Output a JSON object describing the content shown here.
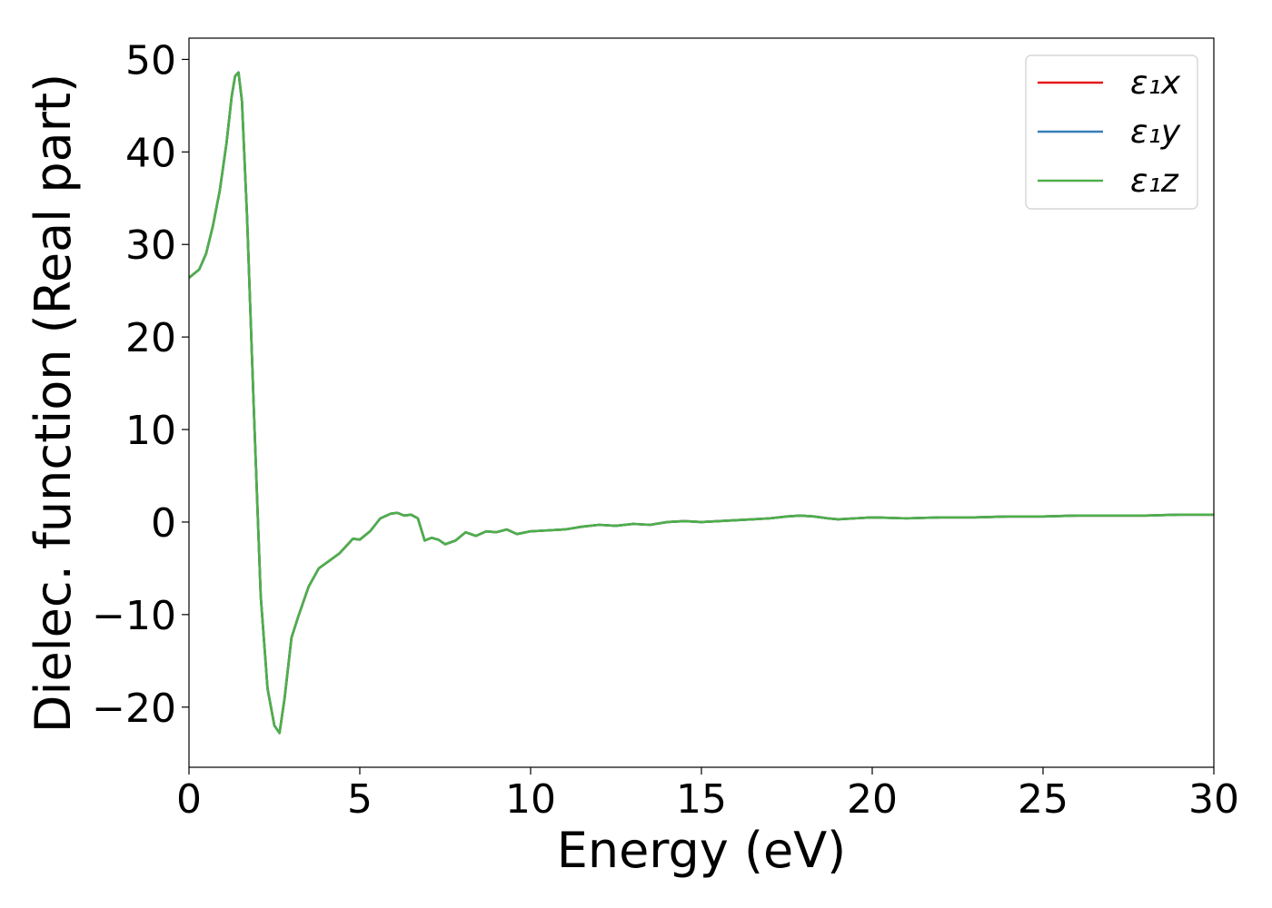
{
  "chart_data": {
    "type": "line",
    "title": "",
    "xlabel": "Energy (eV)",
    "ylabel": "Dielec. function (Real part)",
    "xlim": [
      0,
      30
    ],
    "ylim": [
      -26.5,
      52.3
    ],
    "x_ticks": [
      0,
      5,
      10,
      15,
      20,
      25,
      30
    ],
    "x_tick_labels": [
      "0",
      "5",
      "10",
      "15",
      "20",
      "25",
      "30"
    ],
    "y_ticks": [
      -20,
      -10,
      0,
      10,
      20,
      30,
      40,
      50
    ],
    "y_tick_labels": [
      "−20",
      "−10",
      "0",
      "10",
      "20",
      "30",
      "40",
      "50"
    ],
    "grid": false,
    "legend_position": "top-right",
    "x": [
      0,
      0.3,
      0.5,
      0.7,
      0.9,
      1.1,
      1.25,
      1.35,
      1.45,
      1.55,
      1.7,
      1.9,
      2.1,
      2.3,
      2.5,
      2.65,
      2.8,
      3.0,
      3.2,
      3.5,
      3.8,
      4.1,
      4.4,
      4.6,
      4.8,
      5.0,
      5.3,
      5.6,
      5.9,
      6.1,
      6.3,
      6.5,
      6.7,
      6.9,
      7.1,
      7.3,
      7.5,
      7.8,
      8.1,
      8.4,
      8.7,
      9.0,
      9.3,
      9.6,
      10.0,
      10.5,
      11.0,
      11.5,
      12.0,
      12.5,
      13.0,
      13.5,
      14.0,
      14.5,
      15.0,
      15.5,
      16.0,
      16.5,
      17.0,
      17.5,
      17.9,
      18.3,
      18.7,
      19.0,
      19.5,
      20.0,
      21.0,
      22.0,
      23.0,
      24.0,
      25.0,
      26.0,
      27.0,
      28.0,
      29.0,
      30.0
    ],
    "series": [
      {
        "name": "ε₁x",
        "color": "#e41a1c",
        "values": [
          26.4,
          27.3,
          29.0,
          32.0,
          35.8,
          41.0,
          46.0,
          48.2,
          48.6,
          45.5,
          33.0,
          12.0,
          -8.0,
          -18.0,
          -22.0,
          -22.8,
          -19.0,
          -12.5,
          -10.2,
          -7.0,
          -5.0,
          -4.2,
          -3.4,
          -2.6,
          -1.8,
          -1.9,
          -1.0,
          0.4,
          0.9,
          1.0,
          0.7,
          0.8,
          0.4,
          -2.0,
          -1.7,
          -1.9,
          -2.4,
          -2.0,
          -1.1,
          -1.5,
          -1.0,
          -1.1,
          -0.8,
          -1.3,
          -1.0,
          -0.9,
          -0.8,
          -0.5,
          -0.3,
          -0.4,
          -0.2,
          -0.3,
          0.0,
          0.1,
          0.0,
          0.1,
          0.2,
          0.3,
          0.4,
          0.6,
          0.7,
          0.6,
          0.4,
          0.3,
          0.4,
          0.5,
          0.4,
          0.5,
          0.5,
          0.6,
          0.6,
          0.7,
          0.7,
          0.7,
          0.8,
          0.8
        ]
      },
      {
        "name": "ε₁y",
        "color": "#377eb8",
        "values": [
          26.4,
          27.3,
          29.0,
          32.0,
          35.8,
          41.0,
          46.0,
          48.2,
          48.6,
          45.5,
          33.0,
          12.0,
          -8.0,
          -18.0,
          -22.0,
          -22.8,
          -19.0,
          -12.5,
          -10.2,
          -7.0,
          -5.0,
          -4.2,
          -3.4,
          -2.6,
          -1.8,
          -1.9,
          -1.0,
          0.4,
          0.9,
          1.0,
          0.7,
          0.8,
          0.4,
          -2.0,
          -1.7,
          -1.9,
          -2.4,
          -2.0,
          -1.1,
          -1.5,
          -1.0,
          -1.1,
          -0.8,
          -1.3,
          -1.0,
          -0.9,
          -0.8,
          -0.5,
          -0.3,
          -0.4,
          -0.2,
          -0.3,
          0.0,
          0.1,
          0.0,
          0.1,
          0.2,
          0.3,
          0.4,
          0.6,
          0.7,
          0.6,
          0.4,
          0.3,
          0.4,
          0.5,
          0.4,
          0.5,
          0.5,
          0.6,
          0.6,
          0.7,
          0.7,
          0.7,
          0.8,
          0.8
        ]
      },
      {
        "name": "ε₁z",
        "color": "#4daf4a",
        "values": [
          26.4,
          27.3,
          29.0,
          32.0,
          35.8,
          41.0,
          46.0,
          48.2,
          48.6,
          45.5,
          33.0,
          12.0,
          -8.0,
          -18.0,
          -22.0,
          -22.8,
          -19.0,
          -12.5,
          -10.2,
          -7.0,
          -5.0,
          -4.2,
          -3.4,
          -2.6,
          -1.8,
          -1.9,
          -1.0,
          0.4,
          0.9,
          1.0,
          0.7,
          0.8,
          0.4,
          -2.0,
          -1.7,
          -1.9,
          -2.4,
          -2.0,
          -1.1,
          -1.5,
          -1.0,
          -1.1,
          -0.8,
          -1.3,
          -1.0,
          -0.9,
          -0.8,
          -0.5,
          -0.3,
          -0.4,
          -0.2,
          -0.3,
          0.0,
          0.1,
          0.0,
          0.1,
          0.2,
          0.3,
          0.4,
          0.6,
          0.7,
          0.6,
          0.4,
          0.3,
          0.4,
          0.5,
          0.4,
          0.5,
          0.5,
          0.6,
          0.6,
          0.7,
          0.7,
          0.7,
          0.8,
          0.8
        ]
      }
    ]
  }
}
